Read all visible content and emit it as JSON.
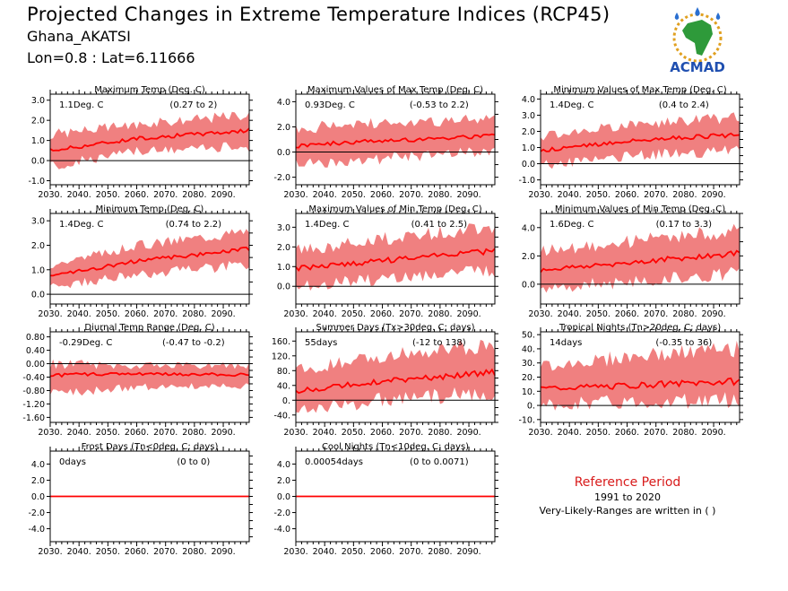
{
  "header": {
    "title": "Projected Changes in Extreme Temperature Indices (RCP45)",
    "location": "Ghana_AKATSI",
    "coordinates": "Lon=0.8 : Lat=6.11666"
  },
  "logo": {
    "text": "ACMAD",
    "icon": "acmad-africa-logo-icon"
  },
  "reference": {
    "title": "Reference Period",
    "years": "1991 to 2020",
    "note": "Very-Likely-Ranges are written in ( )"
  },
  "colors": {
    "band": "#f08080",
    "median": "#ff0000",
    "zero_line": "#000000",
    "ref_title": "#d81b1b"
  },
  "chart_data": [
    {
      "type": "area",
      "title": "Maximum Temp (Deg. C)",
      "value_label": "1.1Deg. C",
      "range_label": "(0.27 to 2)",
      "x_ticks": [
        "2030.",
        "2040.",
        "2050.",
        "2060.",
        "2070.",
        "2080.",
        "2090."
      ],
      "xlim": [
        2030,
        2099
      ],
      "ylim": [
        -1.2,
        3.3
      ],
      "y_ticks": [
        "-1.0",
        "0.0",
        "1.0",
        "2.0",
        "3.0"
      ],
      "y_tick_values": [
        -1,
        0,
        1,
        2,
        3
      ],
      "trend": {
        "x": [
          2030,
          2060,
          2099
        ],
        "median": [
          0.5,
          1.1,
          1.5
        ],
        "low": [
          -0.3,
          0.45,
          0.7
        ],
        "high": [
          1.3,
          1.8,
          2.3
        ]
      }
    },
    {
      "type": "area",
      "title": "Maximum Values of Max Temp (Deg. C)",
      "value_label": "0.93Deg. C",
      "range_label": "(-0.53 to 2.2)",
      "x_ticks": [
        "2030.",
        "2040.",
        "2050.",
        "2060.",
        "2070.",
        "2080.",
        "2090."
      ],
      "xlim": [
        2030,
        2099
      ],
      "ylim": [
        -2.6,
        4.6
      ],
      "y_ticks": [
        "-2.0",
        "0.0",
        "2.0",
        "4.0"
      ],
      "y_tick_values": [
        -2,
        0,
        2,
        4
      ],
      "trend": {
        "x": [
          2030,
          2060,
          2099
        ],
        "median": [
          0.5,
          0.9,
          1.3
        ],
        "low": [
          -0.9,
          -0.5,
          0.1
        ],
        "high": [
          1.9,
          2.3,
          2.6
        ]
      }
    },
    {
      "type": "area",
      "title": "Minimum Values of Max Temp (Deg. C)",
      "value_label": "1.4Deg. C",
      "range_label": "(0.4 to 2.4)",
      "x_ticks": [
        "2030.",
        "2040.",
        "2050.",
        "2060.",
        "2070.",
        "2080.",
        "2090."
      ],
      "xlim": [
        2030,
        2099
      ],
      "ylim": [
        -1.3,
        4.3
      ],
      "y_ticks": [
        "-1.0",
        "0.0",
        "1.0",
        "2.0",
        "3.0",
        "4.0"
      ],
      "y_tick_values": [
        -1,
        0,
        1,
        2,
        3,
        4
      ],
      "trend": {
        "x": [
          2030,
          2060,
          2099
        ],
        "median": [
          0.8,
          1.4,
          1.8
        ],
        "low": [
          -0.1,
          0.5,
          0.8
        ],
        "high": [
          1.7,
          2.4,
          2.9
        ]
      }
    },
    {
      "type": "area",
      "title": "Minimum Temp (Deg. C)",
      "value_label": "1.4Deg. C",
      "range_label": "(0.74 to 2.2)",
      "x_ticks": [
        "2030.",
        "2040.",
        "2050.",
        "2060.",
        "2070.",
        "2080.",
        "2090."
      ],
      "xlim": [
        2030,
        2099
      ],
      "ylim": [
        -0.4,
        3.3
      ],
      "y_ticks": [
        "0.0",
        "1.0",
        "2.0",
        "3.0"
      ],
      "y_tick_values": [
        0,
        1,
        2,
        3
      ],
      "trend": {
        "x": [
          2030,
          2060,
          2099
        ],
        "median": [
          0.75,
          1.35,
          1.85
        ],
        "low": [
          0.3,
          0.8,
          1.2
        ],
        "high": [
          1.2,
          2.0,
          2.6
        ]
      }
    },
    {
      "type": "area",
      "title": "Maximum Values of Min Temp (Deg. C)",
      "value_label": "1.4Deg. C",
      "range_label": "(0.41 to 2.5)",
      "x_ticks": [
        "2030.",
        "2040.",
        "2050.",
        "2060.",
        "2070.",
        "2080.",
        "2090."
      ],
      "xlim": [
        2030,
        2099
      ],
      "ylim": [
        -0.9,
        3.7
      ],
      "y_ticks": [
        "0.0",
        "1.0",
        "2.0",
        "3.0"
      ],
      "y_tick_values": [
        0,
        1,
        2,
        3
      ],
      "trend": {
        "x": [
          2030,
          2060,
          2099
        ],
        "median": [
          0.9,
          1.3,
          1.8
        ],
        "low": [
          0.0,
          0.4,
          0.8
        ],
        "high": [
          1.8,
          2.4,
          3.0
        ]
      }
    },
    {
      "type": "area",
      "title": "Minimum Values of Min Temp (Deg. C)",
      "value_label": "1.6Deg. C",
      "range_label": "(0.17 to 3.3)",
      "x_ticks": [
        "2030.",
        "2040.",
        "2050.",
        "2060.",
        "2070.",
        "2080.",
        "2090."
      ],
      "xlim": [
        2030,
        2099
      ],
      "ylim": [
        -1.4,
        5.0
      ],
      "y_ticks": [
        "0.0",
        "2.0",
        "4.0"
      ],
      "y_tick_values": [
        0,
        2,
        4
      ],
      "trend": {
        "x": [
          2030,
          2060,
          2099
        ],
        "median": [
          1.0,
          1.5,
          2.2
        ],
        "low": [
          -0.3,
          0.2,
          0.8
        ],
        "high": [
          2.3,
          3.0,
          3.8
        ]
      }
    },
    {
      "type": "area",
      "title": "Diurnal Temp Range (Deg. C)",
      "value_label": "-0.29Deg. C",
      "range_label": "(-0.47 to -0.2)",
      "x_ticks": [
        "2030.",
        "2040.",
        "2050.",
        "2060.",
        "2070.",
        "2080.",
        "2090."
      ],
      "xlim": [
        2030,
        2099
      ],
      "ylim": [
        -1.75,
        0.95
      ],
      "y_ticks": [
        "-1.60",
        "-1.20",
        "-0.80",
        "-0.40",
        "0.00",
        "0.40",
        "0.80"
      ],
      "y_tick_values": [
        -1.6,
        -1.2,
        -0.8,
        -0.4,
        0.0,
        0.4,
        0.8
      ],
      "trend": {
        "x": [
          2030,
          2060,
          2099
        ],
        "median": [
          -0.35,
          -0.3,
          -0.33
        ],
        "low": [
          -0.9,
          -0.7,
          -0.65
        ],
        "high": [
          0.0,
          -0.05,
          -0.05
        ]
      }
    },
    {
      "type": "area",
      "title": "Summer Days (Tx>30deg. C; days)",
      "value_label": "55days",
      "range_label": "(-12 to 138)",
      "x_ticks": [
        "2030.",
        "2040.",
        "2050.",
        "2060.",
        "2070.",
        "2080.",
        "2090."
      ],
      "xlim": [
        2030,
        2099
      ],
      "ylim": [
        -60,
        185
      ],
      "y_ticks": [
        "-40.",
        "0.",
        "40.",
        "80.",
        "120.",
        "160."
      ],
      "y_tick_values": [
        -40,
        0,
        40,
        80,
        120,
        160
      ],
      "trend": {
        "x": [
          2030,
          2060,
          2099
        ],
        "median": [
          25,
          52,
          75
        ],
        "low": [
          -25,
          0,
          20
        ],
        "high": [
          80,
          120,
          150
        ]
      }
    },
    {
      "type": "area",
      "title": "Tropical Nights (Tn>20deg. C; days)",
      "value_label": "14days",
      "range_label": "(-0.35 to 36)",
      "x_ticks": [
        "2030.",
        "2040.",
        "2050.",
        "2060.",
        "2070.",
        "2080.",
        "2090."
      ],
      "xlim": [
        2030,
        2099
      ],
      "ylim": [
        -12,
        52
      ],
      "y_ticks": [
        "-10.",
        "0.",
        "10.",
        "20.",
        "30.",
        "40.",
        "50."
      ],
      "y_tick_values": [
        -10,
        0,
        10,
        20,
        30,
        40,
        50
      ],
      "trend": {
        "x": [
          2030,
          2060,
          2099
        ],
        "median": [
          12,
          14,
          17
        ],
        "low": [
          1,
          2,
          4
        ],
        "high": [
          28,
          34,
          40
        ]
      }
    },
    {
      "type": "area",
      "title": "Frost Days (Tn<0deg. C; days)",
      "value_label": "0days",
      "range_label": "(0 to 0)",
      "x_ticks": [
        "2030.",
        "2040.",
        "2050.",
        "2060.",
        "2070.",
        "2080.",
        "2090."
      ],
      "xlim": [
        2030,
        2099
      ],
      "ylim": [
        -5.6,
        5.6
      ],
      "y_ticks": [
        "-4.0",
        "-2.0",
        "0.0",
        "2.0",
        "4.0"
      ],
      "y_tick_values": [
        -4,
        -2,
        0,
        2,
        4
      ],
      "trend": {
        "x": [
          2030,
          2060,
          2099
        ],
        "median": [
          0,
          0,
          0
        ],
        "low": [
          0,
          0,
          0
        ],
        "high": [
          0,
          0,
          0
        ]
      }
    },
    {
      "type": "area",
      "title": "Cool Nights (Tn<10deg. C; days)",
      "value_label": "0.00054days",
      "range_label": "(0 to 0.0071)",
      "x_ticks": [
        "2030.",
        "2040.",
        "2050.",
        "2060.",
        "2070.",
        "2080.",
        "2090."
      ],
      "xlim": [
        2030,
        2099
      ],
      "ylim": [
        -5.6,
        5.6
      ],
      "y_ticks": [
        "-4.0",
        "-2.0",
        "0.0",
        "2.0",
        "4.0"
      ],
      "y_tick_values": [
        -4,
        -2,
        0,
        2,
        4
      ],
      "trend": {
        "x": [
          2030,
          2060,
          2099
        ],
        "median": [
          0,
          0,
          0
        ],
        "low": [
          0,
          0,
          0
        ],
        "high": [
          0.05,
          0.02,
          0.02
        ]
      }
    }
  ]
}
